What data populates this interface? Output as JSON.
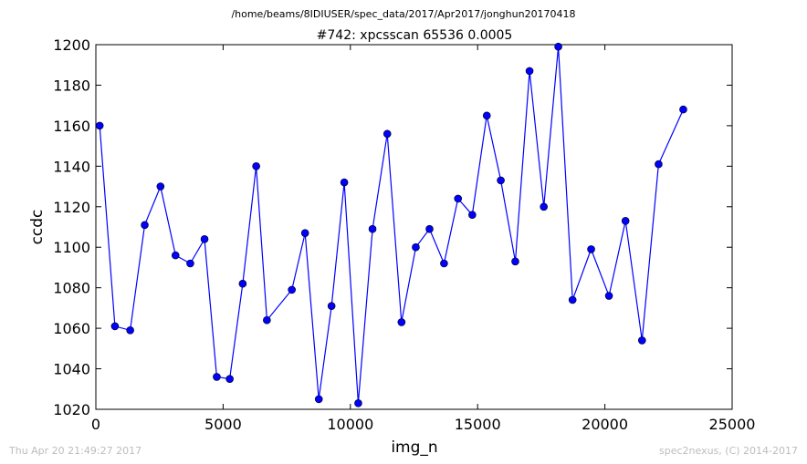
{
  "header": {
    "suptitle": "/home/beams/8IDIUSER/spec_data/2017/Apr2017/jonghun20170418"
  },
  "footer": {
    "timestamp": "Thu Apr 20 21:49:27 2017",
    "credit": "spec2nexus, (C) 2014-2017"
  },
  "colors": {
    "series": "#0000ff",
    "marker": "#0000ff",
    "axis": "#000000",
    "footer_text": "#bdbdbd"
  },
  "chart_data": {
    "type": "line",
    "title": "#742: xpcsscan 65536 0.0005",
    "xlabel": "img_n",
    "ylabel": "ccdc",
    "xlim": [
      0,
      25000
    ],
    "ylim": [
      1020,
      1200
    ],
    "xticks": [
      0,
      5000,
      10000,
      15000,
      20000,
      25000
    ],
    "yticks": [
      1020,
      1040,
      1060,
      1080,
      1100,
      1120,
      1140,
      1160,
      1180,
      1200
    ],
    "grid": false,
    "legend": "none",
    "series": [
      {
        "marker": "circle",
        "x": [
          150,
          750,
          1350,
          1920,
          2540,
          3130,
          3710,
          4270,
          4750,
          5260,
          5770,
          6300,
          6720,
          7700,
          8220,
          8760,
          9260,
          9760,
          10310,
          10870,
          11450,
          12010,
          12570,
          13110,
          13680,
          14230,
          14790,
          15360,
          15910,
          16480,
          17040,
          17600,
          18170,
          18730,
          19460,
          20160,
          20810,
          21460,
          22110,
          23080
        ],
        "values": [
          1160,
          1061,
          1059,
          1111,
          1130,
          1096,
          1092,
          1104,
          1036,
          1035,
          1082,
          1140,
          1064,
          1079,
          1107,
          1025,
          1071,
          1132,
          1023,
          1109,
          1156,
          1063,
          1100,
          1109,
          1092,
          1124,
          1116,
          1165,
          1133,
          1093,
          1187,
          1120,
          1199,
          1074,
          1099,
          1076,
          1113,
          1054,
          1141,
          1168
        ]
      }
    ]
  }
}
